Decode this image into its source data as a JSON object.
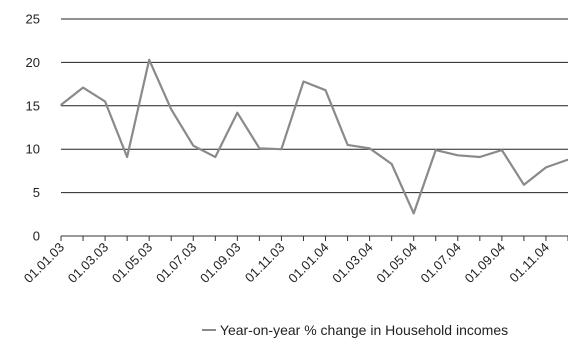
{
  "chart_data": {
    "type": "line",
    "title": "",
    "xlabel": "",
    "ylabel": "",
    "ylim": [
      0,
      25
    ],
    "yticks": [
      0,
      5,
      10,
      15,
      20,
      25
    ],
    "grid": "horizontal",
    "legend_position": "bottom",
    "x_tick_labels": [
      "01.01.03",
      "01.03.03",
      "01.05.03",
      "01.07.03",
      "01.09.03",
      "01.11.03",
      "01.01.04",
      "01.03.04",
      "01.05.04",
      "01.07.04",
      "01.09.04",
      "01.11.04"
    ],
    "x": [
      "01.01.03",
      "01.02.03",
      "01.03.03",
      "01.04.03",
      "01.05.03",
      "01.06.03",
      "01.07.03",
      "01.08.03",
      "01.09.03",
      "01.10.03",
      "01.11.03",
      "01.12.03",
      "01.01.04",
      "01.02.04",
      "01.03.04",
      "01.04.04",
      "01.05.04",
      "01.06.04",
      "01.07.04",
      "01.08.04",
      "01.09.04",
      "01.10.04",
      "01.11.04",
      "01.12.04"
    ],
    "series": [
      {
        "name": "Year-on-year % change in Household incomes",
        "color": "#8a8a8a",
        "values": [
          15.1,
          17.1,
          15.5,
          9.1,
          20.3,
          14.6,
          10.4,
          9.1,
          14.2,
          10.1,
          10.0,
          17.8,
          16.8,
          10.5,
          10.1,
          8.3,
          2.6,
          9.9,
          9.3,
          9.1,
          9.9,
          5.9,
          7.9,
          8.8
        ]
      }
    ]
  },
  "legend": {
    "label": "Year-on-year % change in Household incomes"
  }
}
